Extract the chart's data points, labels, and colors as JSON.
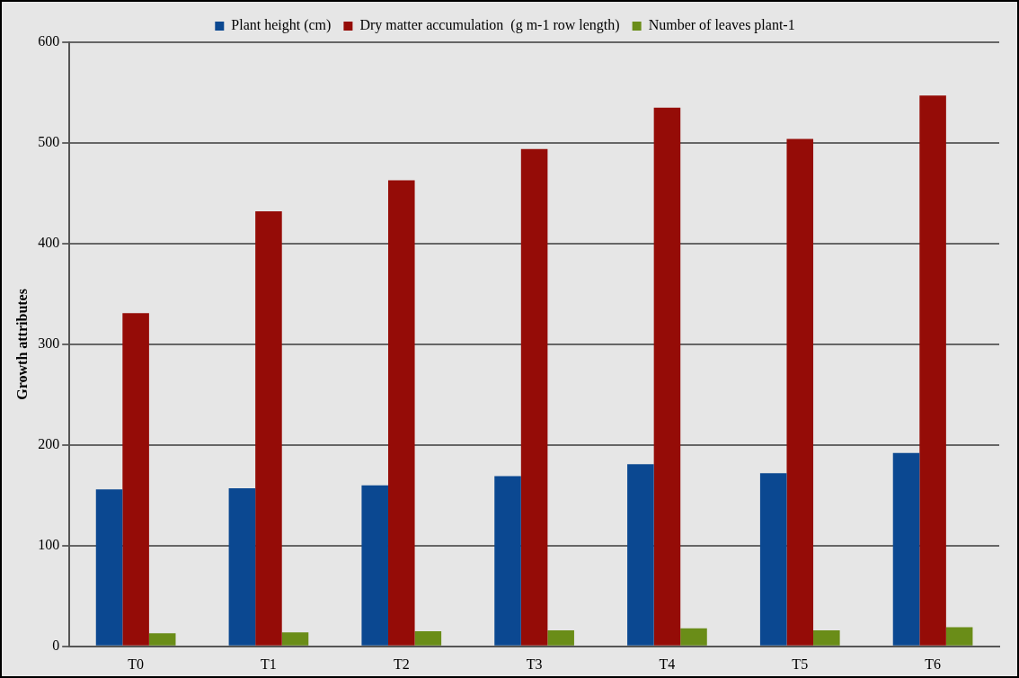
{
  "chart_data": {
    "type": "bar",
    "ylabel": "Growth attributes",
    "categories": [
      "T0",
      "T1",
      "T2",
      "T3",
      "T4",
      "T5",
      "T6"
    ],
    "series": [
      {
        "name": "Plant height (cm)",
        "color": "#0b4891",
        "values": [
          156,
          157,
          160,
          169,
          181,
          172,
          192
        ]
      },
      {
        "name": "Dry matter accumulation  (g m-1 row length)",
        "color": "#950c07",
        "values": [
          331,
          432,
          463,
          494,
          535,
          504,
          547
        ]
      },
      {
        "name": "Number of leaves plant-1",
        "color": "#6a8d18",
        "values": [
          13,
          14,
          15,
          16,
          18,
          16,
          19
        ]
      }
    ],
    "ylim": [
      0,
      600
    ],
    "yticks": [
      0,
      100,
      200,
      300,
      400,
      500,
      600
    ],
    "grid": "y",
    "legend": "top"
  }
}
